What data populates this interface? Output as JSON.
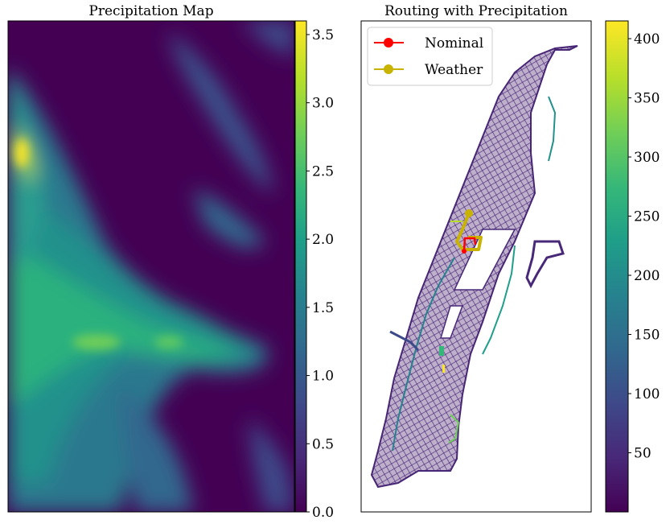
{
  "colors": {
    "viridis": [
      "#440154",
      "#482878",
      "#3e4989",
      "#31688e",
      "#26828e",
      "#1f9e89",
      "#35b779",
      "#6ece58",
      "#b5de2b",
      "#fde725"
    ],
    "background_low": "#440154",
    "nominal_route": "#ff0000",
    "weather_route": "#c8b400"
  },
  "chart_data": [
    {
      "type": "heatmap",
      "title": "Precipitation Map",
      "xlabel": "",
      "ylabel": "",
      "colormap": "viridis",
      "colorbar": {
        "range": [
          0.0,
          3.6
        ],
        "ticks": [
          0.0,
          0.5,
          1.0,
          1.5,
          2.0,
          2.5,
          3.0,
          3.5
        ],
        "tick_labels": [
          "0.0",
          "0.5",
          "1.0",
          "1.5",
          "2.0",
          "2.5",
          "3.0",
          "3.5"
        ]
      },
      "axes_ticks_visible": false
    },
    {
      "type": "line",
      "title": "Routing with Precipitation",
      "xlabel": "",
      "ylabel": "",
      "colormap": "viridis",
      "colorbar": {
        "range": [
          0,
          415
        ],
        "ticks": [
          50,
          100,
          150,
          200,
          250,
          300,
          350,
          400
        ],
        "tick_labels": [
          "50",
          "100",
          "150",
          "200",
          "250",
          "300",
          "350",
          "400"
        ]
      },
      "legend": {
        "placement": "top-left",
        "entries": [
          {
            "label": "Nominal",
            "color": "#ff0000"
          },
          {
            "label": "Weather",
            "color": "#c8b400"
          }
        ]
      },
      "axes_ticks_visible": false
    }
  ]
}
